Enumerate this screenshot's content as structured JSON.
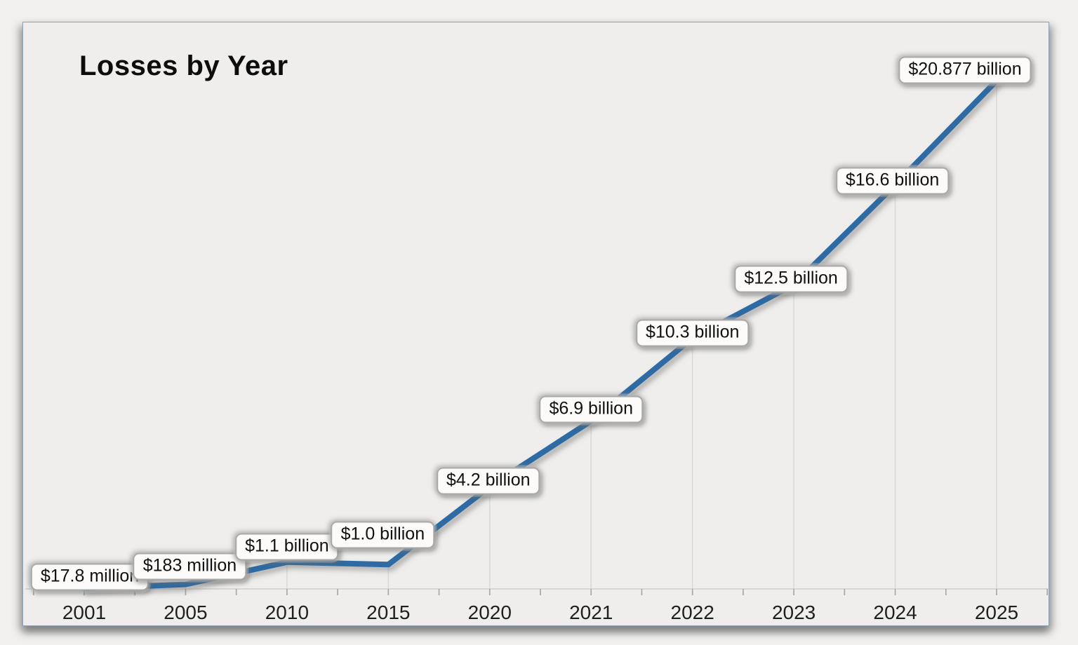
{
  "page": {
    "background": "#f1f0ee"
  },
  "chart": {
    "title": "Losses by Year",
    "frame_border_color": "#8fa0b6",
    "plot_background": "#efeeec",
    "line_color": "#2e6ba3",
    "line_shadow_color": "#8a8a8a",
    "drop_line_color": "#dbdad7",
    "axis_line_color": "#cfcecb",
    "tick_color": "#a5a4a1",
    "axis_label_color": "#1f1f1f",
    "label_box_fill": "#fcfbfa",
    "label_box_border": "#a9a9a9",
    "label_text_color": "#111111"
  },
  "chart_data": {
    "type": "line",
    "title": "Losses by Year",
    "categories": [
      "2001",
      "2005",
      "2010",
      "2015",
      "2020",
      "2021",
      "2022",
      "2023",
      "2024",
      "2025"
    ],
    "values_usd_billions": [
      0.0178,
      0.183,
      1.1,
      1.0,
      4.2,
      6.9,
      10.3,
      12.5,
      16.6,
      20.877
    ],
    "point_labels": [
      "$17.8 million",
      "$183 million",
      "$1.1 billion",
      "$1.0 billion",
      "$4.2 billion",
      "$6.9 billion",
      "$10.3 billion",
      "$12.5 billion",
      "$16.6 billion",
      "$20.877 billion"
    ],
    "xlabel": "",
    "ylabel": "",
    "ylim": [
      0,
      21.5
    ],
    "grid": "vertical-drop-lines-per-point",
    "legend": "none",
    "y_axis_visible": false
  }
}
